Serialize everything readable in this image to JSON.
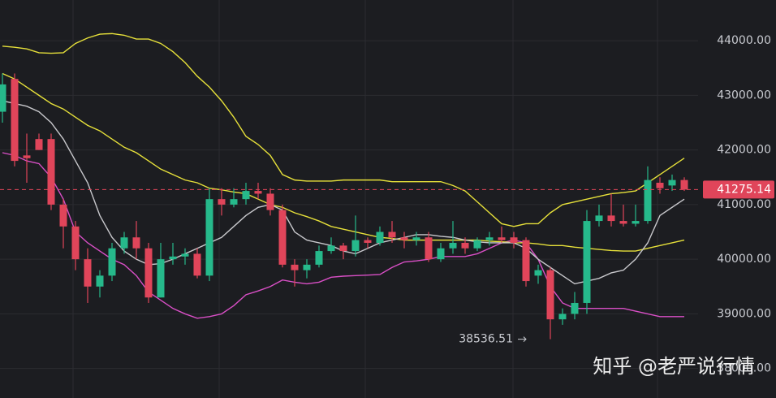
{
  "chart_data": {
    "type": "candlestick",
    "open": [
      42700,
      43300,
      41900,
      42200,
      42200,
      41000,
      40600,
      40000,
      39500,
      39700,
      40200,
      40400,
      40200,
      39300,
      40000,
      40050,
      40100,
      39700,
      41100,
      41000,
      41100,
      41250,
      41200,
      40900,
      39900,
      39800,
      39900,
      40150,
      40250,
      40150,
      40350,
      40300,
      40500,
      40400,
      40350,
      40400,
      40000,
      40200,
      40300,
      40200,
      40350,
      40400,
      40400,
      40350,
      39700,
      39800,
      38900,
      39000,
      39200,
      40700,
      40800,
      40700,
      40650,
      40700,
      41400,
      41350,
      41450
    ],
    "high": [
      43400,
      43400,
      42300,
      42300,
      42300,
      41100,
      40700,
      40200,
      39800,
      40300,
      40500,
      40700,
      40300,
      40300,
      40300,
      40200,
      40200,
      41300,
      41300,
      41300,
      41400,
      41400,
      41300,
      41000,
      40000,
      40000,
      40250,
      40400,
      40300,
      40800,
      40400,
      40600,
      40700,
      40500,
      40500,
      40500,
      40300,
      40700,
      40400,
      40400,
      40500,
      40600,
      40500,
      40400,
      39900,
      39850,
      39100,
      39400,
      40900,
      41000,
      41200,
      41000,
      41000,
      41700,
      41500,
      41550,
      41500
    ],
    "low": [
      42500,
      41700,
      41400,
      42000,
      40900,
      40200,
      39800,
      39200,
      39300,
      39600,
      40100,
      40000,
      39200,
      39300,
      39900,
      39900,
      39650,
      39600,
      40800,
      40950,
      41000,
      41100,
      40800,
      39850,
      39500,
      39650,
      39850,
      40100,
      40000,
      40050,
      40200,
      40250,
      40300,
      40200,
      40250,
      39950,
      39950,
      40100,
      40100,
      40150,
      40250,
      40300,
      40200,
      39500,
      39550,
      38536.51,
      38800,
      38900,
      39000,
      40600,
      40600,
      40600,
      40600,
      40650,
      41200,
      41250,
      41250
    ],
    "close": [
      43200,
      41800,
      41850,
      42000,
      41000,
      40600,
      40000,
      39500,
      39700,
      40200,
      40400,
      40200,
      39300,
      40000,
      40050,
      40100,
      39700,
      41100,
      41000,
      41100,
      41250,
      41200,
      40900,
      39900,
      39800,
      39900,
      40150,
      40250,
      40150,
      40350,
      40300,
      40500,
      40400,
      40350,
      40400,
      40000,
      40200,
      40300,
      40200,
      40350,
      40400,
      40350,
      40300,
      39600,
      39800,
      38900,
      39000,
      39200,
      40700,
      40800,
      40700,
      40650,
      40700,
      41450,
      41300,
      41450,
      41275.14
    ],
    "series": [
      {
        "color": "#e6e03a",
        "values": [
          43900,
          43880,
          43850,
          43780,
          43770,
          43780,
          43950,
          44050,
          44120,
          44130,
          44100,
          44030,
          44030,
          43950,
          43800,
          43600,
          43350,
          43150,
          42900,
          42600,
          42250,
          42100,
          41900,
          41550,
          41450,
          41430,
          41430,
          41430,
          41450,
          41450,
          41450,
          41450,
          41420,
          41420,
          41420,
          41420,
          41420,
          41350,
          41250,
          41050,
          40850,
          40650,
          40600,
          40650,
          40650,
          40850,
          41000,
          41050,
          41100,
          41150,
          41200,
          41220,
          41250,
          41400,
          41550,
          41700,
          41850
        ]
      },
      {
        "color": "#d94fc6",
        "values": [
          41950,
          41900,
          41800,
          41750,
          41500,
          41100,
          40500,
          40300,
          40150,
          40000,
          39900,
          39700,
          39400,
          39250,
          39100,
          39000,
          38920,
          38950,
          39000,
          39150,
          39350,
          39420,
          39500,
          39620,
          39580,
          39550,
          39580,
          39670,
          39690,
          39700,
          39710,
          39720,
          39850,
          39950,
          39970,
          40000,
          40050,
          40050,
          40050,
          40100,
          40200,
          40300,
          40350,
          40300,
          40000,
          39500,
          39200,
          39100,
          39100,
          39100,
          39100,
          39100,
          39050,
          39000,
          38950,
          38950,
          38950
        ]
      },
      {
        "color": "#e6e03a",
        "values": [
          43400,
          43300,
          43150,
          43000,
          42850,
          42750,
          42600,
          42450,
          42350,
          42200,
          42050,
          41950,
          41800,
          41650,
          41550,
          41450,
          41400,
          41300,
          41270,
          41230,
          41200,
          41100,
          41000,
          40950,
          40850,
          40780,
          40700,
          40600,
          40550,
          40500,
          40450,
          40400,
          40380,
          40350,
          40350,
          40350,
          40350,
          40350,
          40350,
          40350,
          40330,
          40320,
          40300,
          40300,
          40280,
          40250,
          40250,
          40220,
          40200,
          40180,
          40160,
          40150,
          40150,
          40200,
          40250,
          40300,
          40350
        ]
      },
      {
        "color": "#c8c8cc",
        "values": [
          42900,
          42850,
          42800,
          42700,
          42500,
          42200,
          41800,
          41400,
          40800,
          40400,
          40150,
          40000,
          39900,
          39920,
          40000,
          40100,
          40200,
          40300,
          40400,
          40600,
          40800,
          40950,
          41000,
          40900,
          40500,
          40350,
          40300,
          40250,
          40150,
          40100,
          40200,
          40300,
          40350,
          40400,
          40450,
          40450,
          40420,
          40400,
          40350,
          40320,
          40300,
          40300,
          40300,
          40200,
          40000,
          39850,
          39700,
          39550,
          39600,
          39650,
          39750,
          39800,
          40000,
          40300,
          40800,
          40950,
          41100
        ]
      }
    ],
    "up_color": "#26b98b",
    "down_color": "#e0455a",
    "ylim": [
      37460,
      44745
    ],
    "yticks": [
      {
        "value": 44000,
        "label": "44000.00"
      },
      {
        "value": 43000,
        "label": "43000.00"
      },
      {
        "value": 42000,
        "label": "42000.00"
      },
      {
        "value": 41000,
        "label": "41000.00"
      },
      {
        "value": 40000,
        "label": "40000.00"
      },
      {
        "value": 39000,
        "label": "39000.00"
      },
      {
        "value": 38000,
        "label": "38000.00"
      }
    ],
    "grid": true,
    "last_price": 41275.14,
    "watermark": "知乎 @老严说行情"
  }
}
